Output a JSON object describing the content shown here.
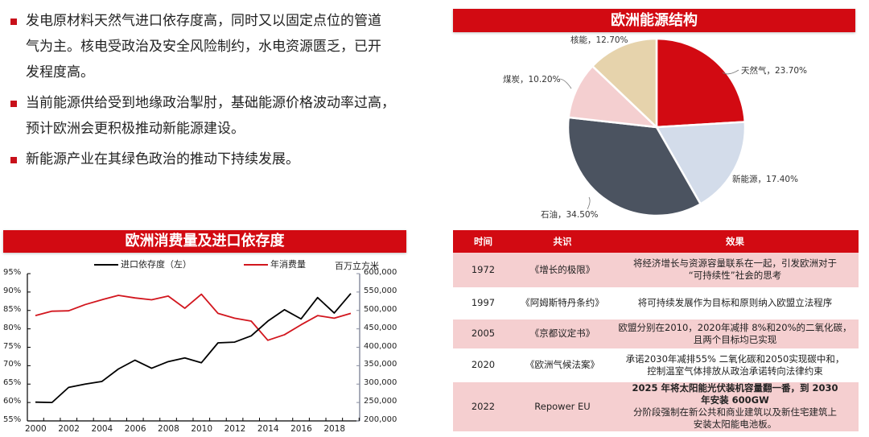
{
  "bullets": [
    "发电原材料天然气进口依存度高，同时又以固定点位的管道气为主。核电受政治及安全风险制约，水电资源匮乏，已开发程度高。",
    "当前能源供给受到地缘政治掣肘，基础能源价格波动率过高，预计欧洲会更积极推动新能源建设。",
    "新能源产业在其绿色政治的推动下持续发展。"
  ],
  "bullet_lines": [
    [
      "发电原材料天然气进口依存度高，同时又以固定点位的管道",
      "气为主。核电受政治及安全风险制约，水电资源匮乏，已开",
      "发程度高。"
    ],
    [
      "当前能源供给受到地缘政治掣肘，基础能源价格波动率过高，",
      "预计欧洲会更积极推动新能源建设。"
    ],
    [
      "新能源产业在其绿色政治的推动下持续发展。"
    ]
  ],
  "colors": {
    "accent_red": "#d20a12",
    "row_pink": "#f5cfd0",
    "natural_gas": "#d20a12",
    "new_energy": "#d3dcea",
    "oil": "#4b5360",
    "coal": "#f4cfd0",
    "nuclear": "#e6d3ac",
    "import_line": "#000000",
    "consumption_line": "#d2161e",
    "right_axis": "#8a8fa0"
  },
  "chart_data": [
    {
      "type": "pie",
      "title": "欧洲能源结构",
      "categories": [
        "天然气",
        "新能源",
        "石油",
        "煤炭",
        "核能"
      ],
      "values": [
        23.7,
        17.4,
        34.5,
        10.2,
        12.7
      ],
      "labels": [
        "天然气，23.70%",
        "新能源，17.40%",
        "石油，34.50%",
        "煤炭，10.20%",
        "核能，12.70%"
      ],
      "start_angle": "12 o'clock, clockwise"
    },
    {
      "type": "line",
      "title": "欧洲消费量及进口依存度",
      "x": [
        2000,
        2001,
        2002,
        2003,
        2004,
        2005,
        2006,
        2007,
        2008,
        2009,
        2010,
        2011,
        2012,
        2013,
        2014,
        2015,
        2016,
        2017,
        2018,
        2019
      ],
      "xticks": [
        "2000",
        "2002",
        "2004",
        "2006",
        "2008",
        "2010",
        "2012",
        "2014",
        "2016",
        "2018"
      ],
      "series": [
        {
          "name": "进口依存度（左）",
          "axis": "left",
          "values": [
            60.1,
            60.0,
            64.1,
            65.0,
            65.7,
            69.1,
            71.5,
            69.3,
            71.1,
            72.1,
            70.8,
            76.2,
            76.4,
            78.1,
            82.1,
            85.2,
            82.7,
            88.5,
            84.3,
            89.6
          ]
        },
        {
          "name": "年消费量",
          "axis": "right",
          "values": [
            486000,
            498000,
            499000,
            516000,
            529000,
            541000,
            534000,
            529000,
            539000,
            506000,
            544000,
            492000,
            479000,
            471000,
            419000,
            434000,
            461000,
            486000,
            479000,
            492000
          ]
        }
      ],
      "ylabel_left": "",
      "ylabel_right": "百万立方米",
      "ylim_left": [
        55,
        95
      ],
      "yticks_left": [
        "95%",
        "90%",
        "85%",
        "80%",
        "75%",
        "70%",
        "65%",
        "60%",
        "55%"
      ],
      "ylim_right": [
        200000,
        600000
      ],
      "yticks_right": [
        "600,000",
        "550,000",
        "500,000",
        "450,000",
        "400,000",
        "350,000",
        "300,000",
        "250,000",
        "200,000"
      ],
      "grid": false,
      "legend_position": "top"
    },
    {
      "type": "table",
      "columns": [
        "时间",
        "共识",
        "效果"
      ],
      "rows": [
        [
          "1972",
          "《增长的极限》",
          "将经济增长与资源容量联系在一起，引发欧洲对于“可持续性”社会的思考"
        ],
        [
          "1997",
          "《阿姆斯特丹条约》",
          "将可持续发展作为目标和原则纳入欧盟立法程序"
        ],
        [
          "2005",
          "《京都议定书》",
          "欧盟分别在2010，2020年减排 8%和20%的二氧化碳，且两个目标均已实现"
        ],
        [
          "2020",
          "《欧洲气候法案》",
          "承诺2030年减排55% 二氧化碳和2050实现碳中和，控制温室气体排放从政治承诺转向法律约束"
        ],
        [
          "2022",
          "Repower EU",
          "2025 年将太阳能光伏装机容量翻一番，到 2030 年安装 600GW 分阶段强制在新公共和商业建筑以及新住宅建筑上安装太阳能电池板。"
        ]
      ]
    }
  ],
  "pie": {
    "title": "欧洲能源结构",
    "labels": {
      "gas": "天然气，23.70%",
      "new": "新能源，17.40%",
      "oil": "石油，34.50%",
      "coal": "煤炭，10.20%",
      "nuclear": "核能，12.70%"
    }
  },
  "line": {
    "title": "欧洲消费量及进口依存度",
    "legend_import": "进口依存度（左）",
    "legend_consumption": "年消费量",
    "unit": "百万立方米"
  },
  "table": {
    "headers": [
      "时间",
      "共识",
      "效果"
    ],
    "rows": [
      {
        "year": "1972",
        "name": "《增长的极限》",
        "effect": [
          "将经济增长与资源容量联系在一起，引发欧洲对于",
          "“可持续性”社会的思考"
        ]
      },
      {
        "year": "1997",
        "name": "《阿姆斯特丹条约》",
        "effect": [
          "将可持续发展作为目标和原则纳入欧盟立法程序"
        ]
      },
      {
        "year": "2005",
        "name": "《京都议定书》",
        "effect": [
          "欧盟分别在2010，2020年减排 8%和20%的二氧化碳，",
          "且两个目标均已实现"
        ]
      },
      {
        "year": "2020",
        "name": "《欧洲气候法案》",
        "effect": [
          "承诺2030年减排55% 二氧化碳和2050实现碳中和，",
          "控制温室气体排放从政治承诺转向法律约束"
        ]
      },
      {
        "year": "2022",
        "name": "Repower EU",
        "effect": [
          "2025 年将太阳能光伏装机容量翻一番，到 2030",
          "年安装 600GW",
          "分阶段强制在新公共和商业建筑以及新住宅建筑上",
          "安装太阳能电池板。"
        ]
      }
    ]
  }
}
